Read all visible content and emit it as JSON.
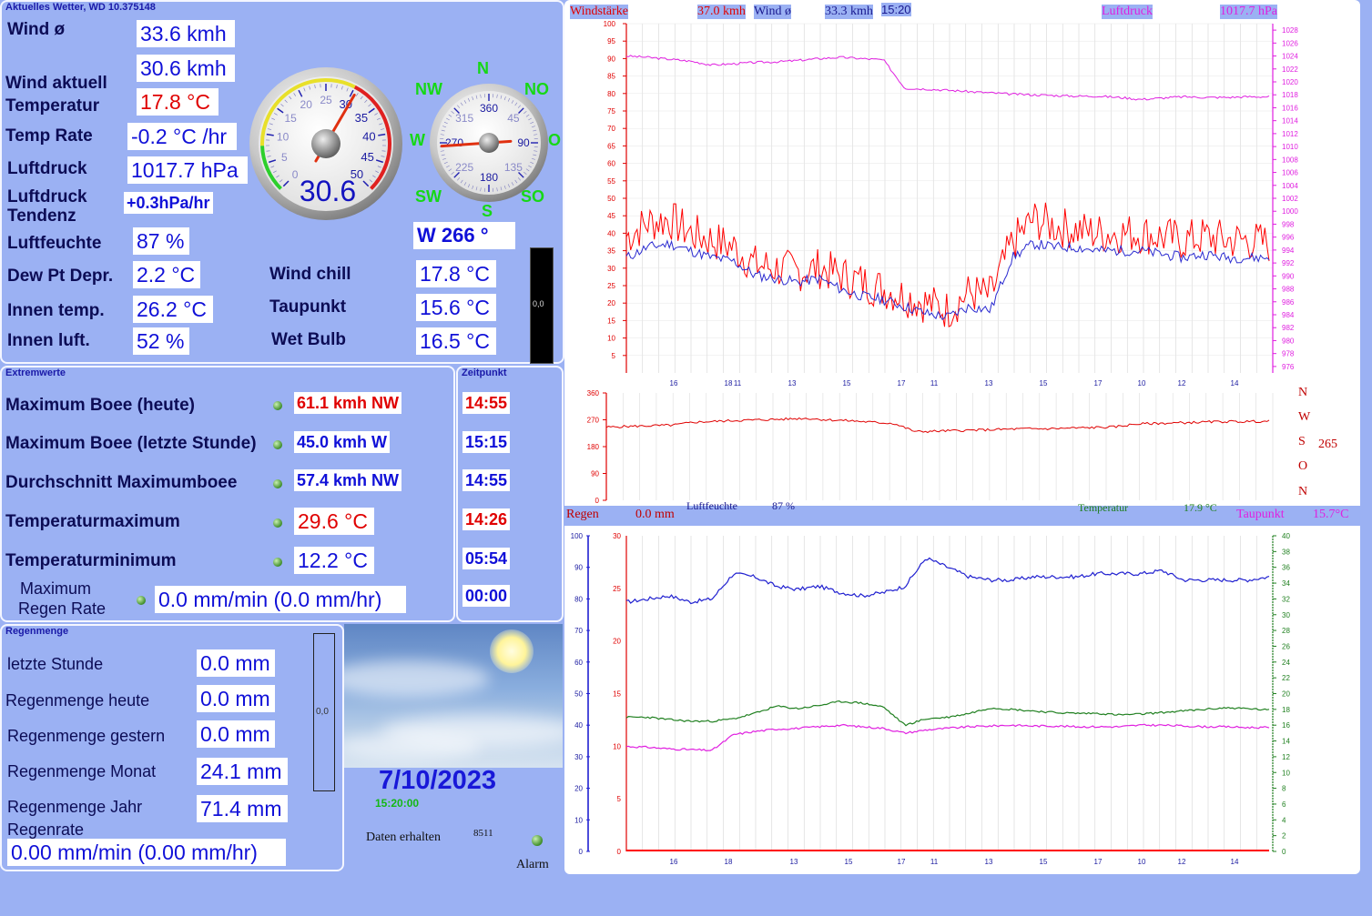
{
  "header": {
    "title": "Aktuelles Wetter, WD 10.375148"
  },
  "current": {
    "wind_avg_label": "Wind ø",
    "wind_avg": "33.6 kmh",
    "wind_now_label": "Wind aktuell",
    "wind_now": "30.6 kmh",
    "temp_label": "Temperatur",
    "temp": "17.8 °C",
    "temp_rate_label": "Temp Rate",
    "temp_rate": "-0.2 °C /hr",
    "pressure_label": "Luftdruck",
    "pressure": "1017.7 hPa",
    "trend_label_1": "Luftdruck",
    "trend_label_2": "Tendenz",
    "trend": "+0.3hPa/hr",
    "humidity_label": "Luftfeuchte",
    "humidity": "87 %",
    "dewdepr_label": "Dew Pt Depr.",
    "dewdepr": "2.2 °C",
    "indoor_temp_label": "Innen temp.",
    "indoor_temp": "26.2 °C",
    "indoor_hum_label": "Innen luft.",
    "indoor_hum": "52 %",
    "windchill_label": "Wind chill",
    "windchill": "17.8 °C",
    "dewpoint_label": "Taupunkt",
    "dewpoint": "15.6 °C",
    "wetbulb_label": "Wet Bulb",
    "wetbulb": "16.5 °C",
    "wind_dir": "W  266 °",
    "bar_value": "0,0"
  },
  "speed_gauge": {
    "value": "30.6",
    "ticks": [
      "0",
      "5",
      "10",
      "15",
      "20",
      "25",
      "30",
      "35",
      "40",
      "45",
      "50"
    ],
    "reading": 30.6,
    "max": 50
  },
  "compass": {
    "n": "N",
    "ne": "NO",
    "e": "O",
    "se": "SO",
    "s": "S",
    "sw": "SW",
    "w": "W",
    "nw": "NW",
    "ticks": [
      "360",
      "45",
      "90",
      "135",
      "180",
      "225",
      "270",
      "315"
    ],
    "heading": 266
  },
  "extremes": {
    "title": "Extremwerte",
    "time_title": "Zeitpunkt",
    "rows": [
      {
        "label": "Maximum Boee (heute)",
        "value": "61.1 kmh NW",
        "time": "14:55"
      },
      {
        "label": "Maximum Boee (letzte Stunde)",
        "value": "45.0 kmh  W",
        "time": "15:15"
      },
      {
        "label": "Durchschnitt Maximumboee",
        "value": "57.4 kmh NW",
        "time": "14:55"
      },
      {
        "label": "Temperaturmaximum",
        "value": "29.6 °C",
        "time": "14:26"
      },
      {
        "label": "Temperaturminimum",
        "value": "12.2 °C",
        "time": "05:54"
      },
      {
        "label_1": "Maximum",
        "label_2": "Regen Rate",
        "value": "0.0 mm/min (0.0 mm/hr)",
        "time": "00:00"
      }
    ]
  },
  "rain": {
    "title": "Regenmenge",
    "last_hour_label": "letzte Stunde",
    "last_hour": "0.0 mm",
    "today_label": "Regenmenge heute",
    "today": "0.0 mm",
    "yesterday_label": "Regenmenge gestern",
    "yesterday": "0.0 mm",
    "month_label": "Regenmenge Monat",
    "month": "24.1 mm",
    "year_label": "Regenmenge Jahr",
    "year": "71.4 mm",
    "rate_label": "Regenrate",
    "rate": "0.00 mm/min (0.00 mm/hr)",
    "bar_value": "0,0"
  },
  "status": {
    "date": "7/10/2023",
    "time": "15:20:00",
    "data_label": "Daten erhalten",
    "data_count": "8511",
    "alarm_label": "Alarm"
  },
  "chart_data": [
    {
      "type": "line",
      "header": {
        "windstaerke_label": "Windstärke",
        "windstaerke": "37.0 kmh",
        "wind_label": "Wind ø",
        "wind": "33.3 kmh",
        "time": "15:20",
        "pressure_label": "Luftdruck",
        "pressure": "1017.7 hPa"
      },
      "x_ticks": [
        "16",
        "18",
        "11",
        "13",
        "15",
        "17",
        "11",
        "13",
        "15",
        "17",
        "10",
        "12",
        "14"
      ],
      "y_left": [
        100,
        95,
        90,
        85,
        80,
        75,
        70,
        65,
        60,
        55,
        50,
        45,
        40,
        35,
        30,
        25,
        20,
        15,
        10,
        5
      ],
      "y_right": [
        1028,
        1026,
        1024,
        1022,
        1020,
        1018,
        1016,
        1014,
        1012,
        1010,
        1008,
        1006,
        1004,
        1002,
        1000,
        998,
        996,
        994,
        992,
        990,
        988,
        986,
        984,
        982,
        980,
        978,
        976
      ],
      "ylim_left": [
        0,
        100
      ],
      "ylim_right": [
        975,
        1029
      ],
      "series": [
        {
          "name": "Windstärke",
          "color": "#ff0000",
          "values": [
            39,
            43,
            44,
            40,
            38,
            36,
            31,
            30,
            29,
            30,
            28,
            26,
            24,
            22,
            20,
            18,
            23,
            22,
            37,
            44,
            42,
            41,
            40,
            40,
            40,
            39,
            38,
            39,
            38,
            38,
            37
          ]
        },
        {
          "name": "Wind ø",
          "color": "#2a2ad0",
          "values": [
            33,
            36,
            37,
            35,
            33,
            32,
            28,
            27,
            26,
            27,
            24,
            22,
            21,
            19,
            17,
            16,
            19,
            18,
            33,
            37,
            36,
            36,
            35,
            35,
            35,
            34,
            33,
            34,
            33,
            33,
            33
          ]
        },
        {
          "name": "Luftdruck",
          "color": "#e020e0",
          "values": [
            1024,
            1023.8,
            1023.5,
            1023.2,
            1022.6,
            1022.8,
            1023,
            1023.1,
            1023.3,
            1023.6,
            1023.8,
            1023.6,
            1023.4,
            1019,
            1018.9,
            1018.7,
            1018.5,
            1018.3,
            1018.1,
            1018,
            1017.9,
            1017.8,
            1017.8,
            1017.6,
            1017.3,
            1017.5,
            1017.7,
            1017.6,
            1017.6,
            1017.7,
            1017.7
          ]
        }
      ]
    },
    {
      "type": "line",
      "x_ticks": [],
      "y_left": [
        360,
        270,
        180,
        90,
        0
      ],
      "ylim": [
        0,
        360
      ],
      "side_labels": {
        "n": "N",
        "w": "W",
        "s": "S",
        "o": "O",
        "n2": "N",
        "value": "265"
      },
      "series": [
        {
          "name": "Windrichtung",
          "color": "#e00000",
          "values": [
            245,
            248,
            250,
            252,
            262,
            265,
            268,
            270,
            272,
            275,
            270,
            267,
            262,
            258,
            230,
            232,
            234,
            236,
            238,
            240,
            240,
            242,
            244,
            246,
            256,
            258,
            260,
            262,
            264,
            264,
            265
          ]
        }
      ]
    },
    {
      "type": "line",
      "header": {
        "rain_label": "Regen",
        "rain": "0.0 mm",
        "humidity_label": "Luftfeuchte",
        "humidity": "87 %",
        "temp_label": "Temperatur",
        "temp": "17.9 °C",
        "dew_label": "Taupunkt",
        "dew": "15.7°C"
      },
      "x_ticks": [
        "16",
        "18",
        "13",
        "15",
        "17",
        "11",
        "13",
        "15",
        "17",
        "10",
        "12",
        "14"
      ],
      "y_left_a": [
        30,
        25,
        20,
        15,
        10,
        5,
        0
      ],
      "y_left_b": [
        100,
        90,
        80,
        70,
        60,
        50,
        40,
        30,
        20,
        10,
        0
      ],
      "y_right": [
        40,
        38,
        36,
        34,
        32,
        30,
        28,
        26,
        24,
        22,
        20,
        18,
        16,
        14,
        12,
        10,
        8,
        6,
        4,
        2,
        0
      ],
      "ylim_hum": [
        0,
        100
      ],
      "ylim_temp": [
        0,
        40
      ],
      "series": [
        {
          "name": "Luftfeuchte",
          "color": "#2020d0",
          "values": [
            79,
            80,
            81,
            79,
            80,
            88,
            87,
            84,
            83,
            84,
            82,
            81,
            82,
            84,
            93,
            90,
            87,
            86,
            86,
            87,
            87,
            87,
            88,
            88,
            88,
            89,
            86,
            86,
            86,
            86,
            87
          ]
        },
        {
          "name": "Temperatur",
          "color": "#208020",
          "values": [
            17,
            17,
            16.7,
            16.5,
            16.5,
            16.8,
            17.5,
            18.4,
            18.1,
            18.5,
            19,
            18.8,
            18.3,
            16,
            16.8,
            17,
            17.5,
            18.2,
            18,
            17.8,
            17.6,
            17.5,
            17.5,
            17.3,
            17.4,
            17.6,
            17.8,
            18,
            18.2,
            18.1,
            17.9
          ]
        },
        {
          "name": "Taupunkt",
          "color": "#e020e0",
          "values": [
            13.3,
            13.2,
            13,
            12.9,
            12.8,
            14.8,
            15.2,
            15.5,
            15.6,
            15.8,
            16,
            15.8,
            15.6,
            15,
            15.4,
            15.6,
            15.8,
            15.9,
            16,
            15.9,
            15.9,
            15.8,
            15.8,
            15.8,
            16,
            16,
            15.9,
            15.8,
            15.8,
            15.7,
            15.7
          ]
        },
        {
          "name": "Regen",
          "color": "#ff0000",
          "values": [
            0,
            0,
            0,
            0,
            0,
            0,
            0,
            0,
            0,
            0,
            0,
            0,
            0,
            0,
            0,
            0,
            0,
            0,
            0,
            0,
            0,
            0,
            0,
            0,
            0,
            0,
            0,
            0,
            0,
            0,
            0
          ]
        }
      ]
    }
  ]
}
